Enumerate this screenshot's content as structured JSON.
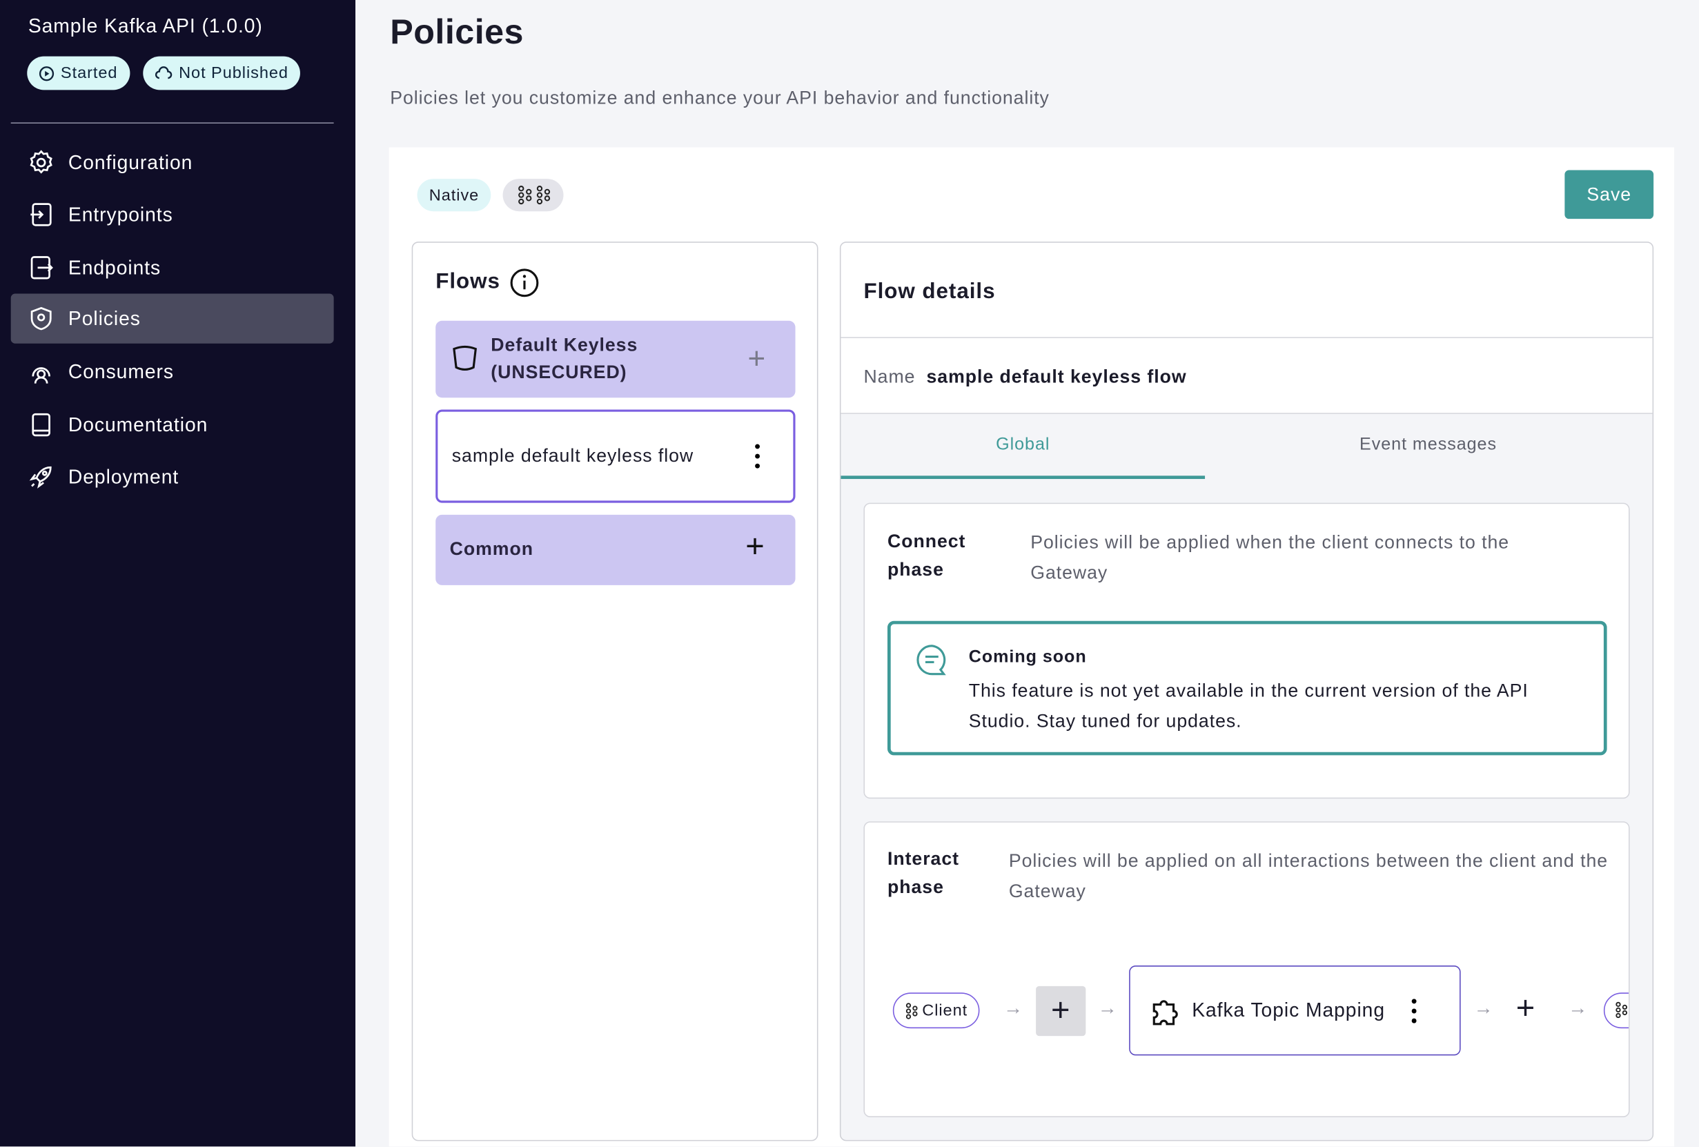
{
  "sidebar": {
    "api_name": "Sample Kafka API (1.0.0)",
    "badges": [
      "Started",
      "Not Published"
    ],
    "nav": [
      "Configuration",
      "Entrypoints",
      "Endpoints",
      "Policies",
      "Consumers",
      "Documentation",
      "Deployment"
    ]
  },
  "page": {
    "title": "Policies",
    "subtitle": "Policies let you customize and enhance your API behavior and functionality"
  },
  "toolbar": {
    "chip": "Native",
    "save": "Save"
  },
  "flows": {
    "title": "Flows",
    "groups": [
      {
        "name": "Default Keyless (UNSECURED)",
        "flows": [
          "sample default keyless flow"
        ]
      },
      {
        "name": "Common",
        "flows": []
      }
    ]
  },
  "details": {
    "title": "Flow details",
    "name_label": "Name",
    "name_value": "sample default keyless flow",
    "tabs": [
      "Global",
      "Event messages"
    ],
    "phases": [
      {
        "name": "Connect phase",
        "description": "Policies will be applied when the client connects to the Gateway",
        "notice": {
          "title": "Coming soon",
          "text": "This feature is not yet available in the current version of the API Studio. Stay tuned for updates."
        }
      },
      {
        "name": "Interact phase",
        "description": "Policies will be applied on all interactions between the client and the Gateway",
        "pipeline": {
          "start": "Client",
          "policy": "Kafka Topic Mapping"
        }
      }
    ]
  }
}
